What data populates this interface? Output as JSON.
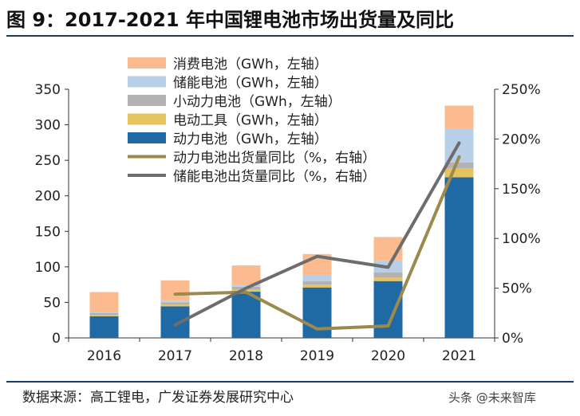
{
  "header": {
    "title": "图 9：2017-2021 年中国锂电池市场出货量及同比"
  },
  "footer": {
    "source": "数据来源：高工锂电，广发证券发展研究中心"
  },
  "watermark": {
    "text": "头条 @未来智库"
  },
  "chart_data": {
    "type": "bar",
    "stacked": true,
    "categories": [
      "2016",
      "2017",
      "2018",
      "2019",
      "2020",
      "2021"
    ],
    "series": [
      {
        "name": "动力电池（GWh，左轴）",
        "color": "#1f6aa5",
        "values": [
          30.5,
          44.5,
          65,
          71,
          80,
          226
        ]
      },
      {
        "name": "电动工具（GWh，左轴）",
        "color": "#e6c35c",
        "values": [
          2,
          2.5,
          3,
          4,
          5,
          13
        ]
      },
      {
        "name": "小动力电池（GWh，左轴）",
        "color": "#b2b2b2",
        "values": [
          2.5,
          3,
          4,
          5,
          7,
          8
        ]
      },
      {
        "name": "储能电池（GWh，左轴）",
        "color": "#b8cfe8",
        "values": [
          1.5,
          2,
          3,
          8,
          17,
          48
        ]
      },
      {
        "name": "消费电池（GWh，左轴）",
        "color": "#fbbb8e",
        "values": [
          28,
          29,
          27,
          30,
          33,
          32
        ]
      }
    ],
    "lines": [
      {
        "name": "动力电池出货量同比（%，右轴）",
        "color": "#9a8a4e",
        "values": [
          null,
          44,
          46,
          9,
          12,
          182
        ]
      },
      {
        "name": "储能电池出货量同比（%，右轴）",
        "color": "#6d6d6d",
        "values": [
          null,
          13,
          50,
          82,
          71,
          196
        ]
      }
    ],
    "legend_order": [
      "消费电池（GWh，左轴）",
      "储能电池（GWh，左轴）",
      "小动力电池（GWh，左轴）",
      "电动工具（GWh，左轴）",
      "动力电池（GWh，左轴）",
      "动力电池出货量同比（%，右轴）",
      "储能电池出货量同比（%，右轴）"
    ],
    "ylim_left": [
      0,
      350
    ],
    "yticks_left": [
      0,
      50,
      100,
      150,
      200,
      250,
      300,
      350
    ],
    "ylim_right": [
      0,
      250
    ],
    "yticks_right": [
      "0%",
      "50%",
      "100%",
      "150%",
      "200%",
      "250%"
    ],
    "legend_position": "top-left"
  }
}
